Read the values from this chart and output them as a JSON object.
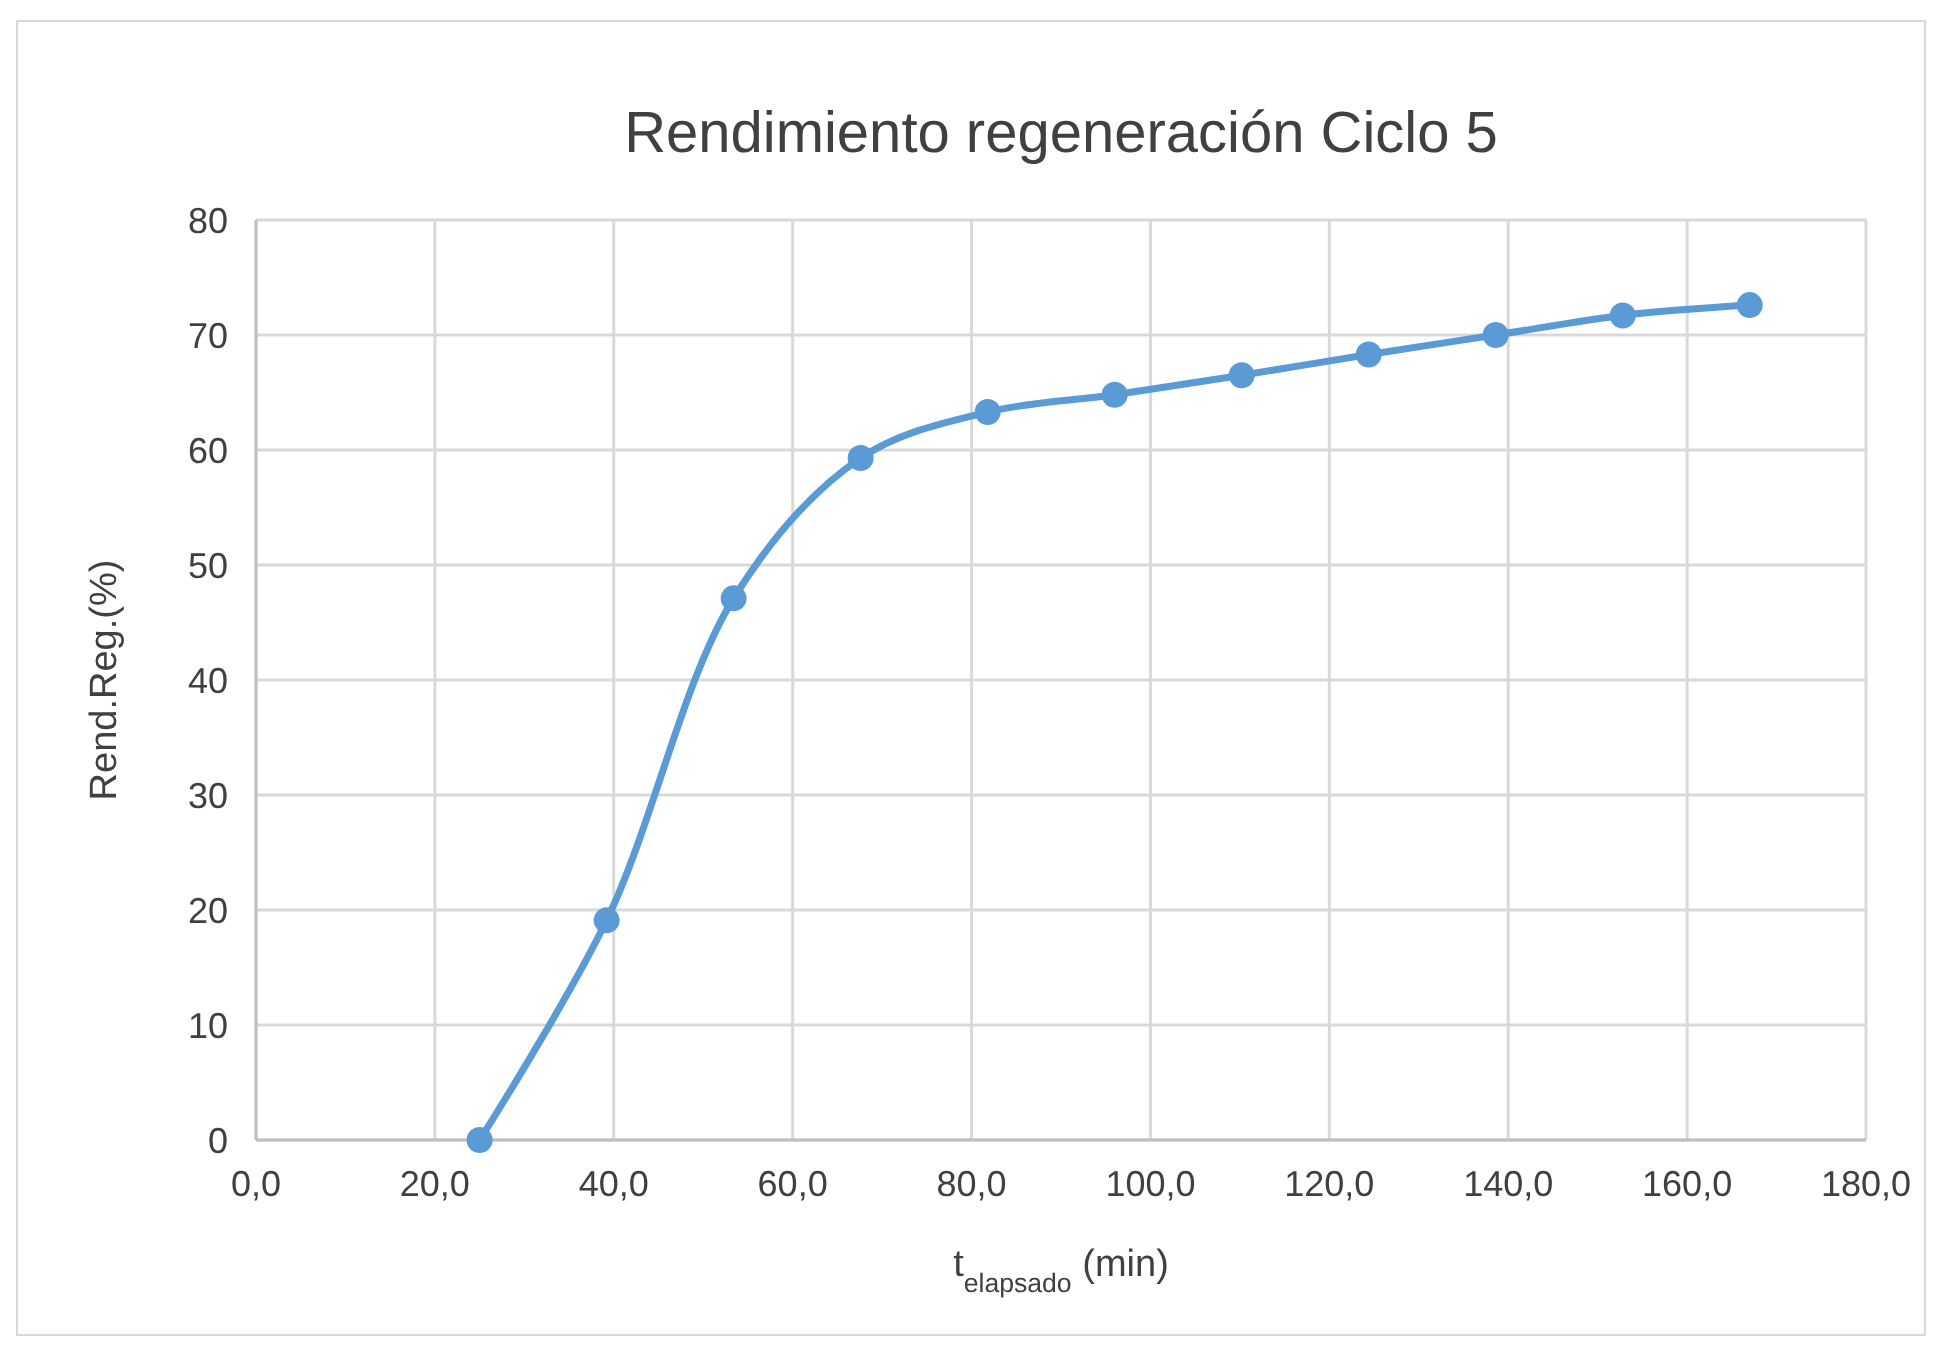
{
  "chart_data": {
    "type": "line",
    "title": "Rendimiento regeneración Ciclo 5",
    "xlabel": "t$_{elapsado}$ (min)",
    "ylabel": "Rend.Reg.(%)",
    "x": [
      25.0,
      39.2,
      53.4,
      67.6,
      81.8,
      96.0,
      110.2,
      124.4,
      138.6,
      152.8,
      167.0
    ],
    "series": [
      {
        "color": "#5b9bd5",
        "values": [
          0,
          19.1,
          47.1,
          59.3,
          63.3,
          64.8,
          66.5,
          68.3,
          70.0,
          71.7,
          72.6
        ]
      }
    ],
    "xlim": [
      0,
      180
    ],
    "xticks": [
      {
        "value": 0,
        "label": "0,0"
      },
      {
        "value": 20,
        "label": "20,0"
      },
      {
        "value": 40,
        "label": "40,0"
      },
      {
        "value": 60,
        "label": "60,0"
      },
      {
        "value": 80,
        "label": "80,0"
      },
      {
        "value": 100,
        "label": "100,0"
      },
      {
        "value": 120,
        "label": "120,0"
      },
      {
        "value": 140,
        "label": "140,0"
      },
      {
        "value": 160,
        "label": "160,0"
      },
      {
        "value": 180,
        "label": "180,0"
      }
    ],
    "ylim": [
      0,
      80
    ],
    "yticks": [
      0,
      10,
      20,
      30,
      40,
      50,
      60,
      70,
      80
    ],
    "grid": true,
    "marker": "circle",
    "line_style": "solid"
  }
}
